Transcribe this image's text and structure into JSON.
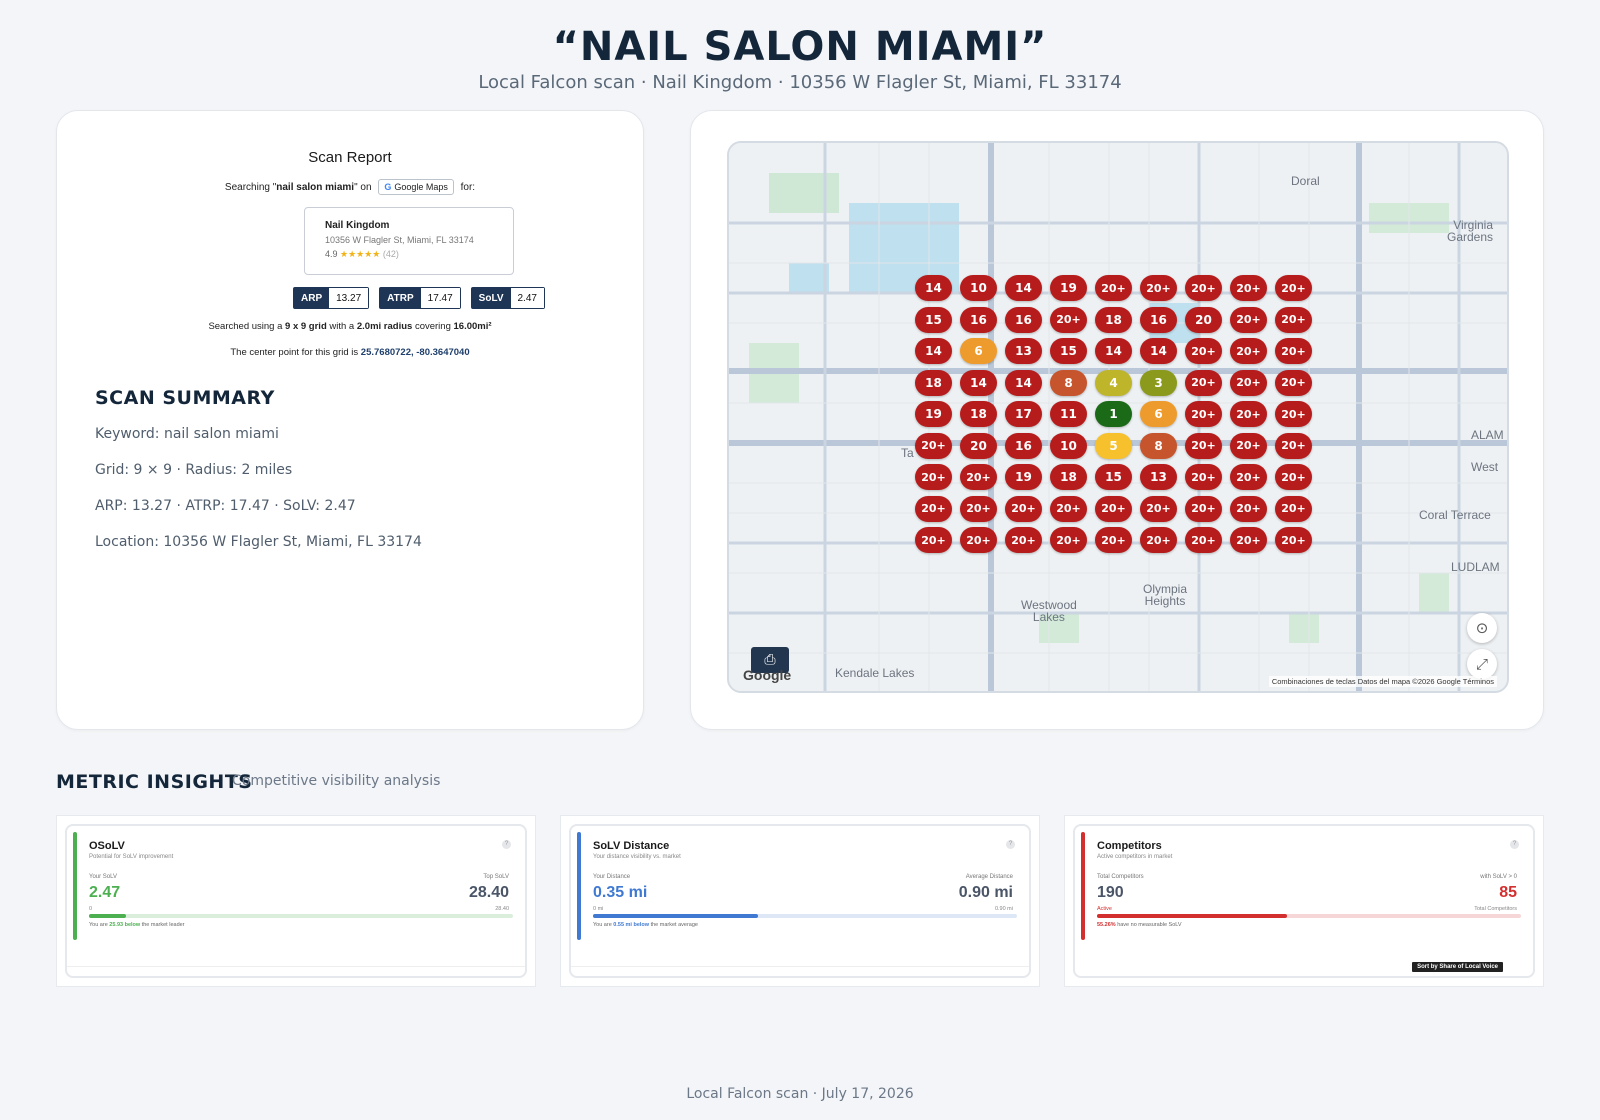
{
  "header": {
    "title": "“NAIL SALON MIAMI”",
    "subtitle": "Local Falcon scan · Nail Kingdom · 10356 W Flagler St, Miami, FL 33174"
  },
  "scan_report": {
    "title": "Scan Report",
    "search_prefix": "Searching \"",
    "keyword": "nail salon miami",
    "search_mid": "\" on",
    "platform": "Google Maps",
    "search_suffix": "for:",
    "business": {
      "name": "Nail Kingdom",
      "address": "10356 W Flagler St, Miami, FL 33174",
      "rating": "4.9",
      "stars": "★★★★★",
      "review_count": "(42)"
    },
    "metrics": [
      {
        "label": "ARP",
        "value": "13.27"
      },
      {
        "label": "ATRP",
        "value": "17.47"
      },
      {
        "label": "SoLV",
        "value": "2.47"
      }
    ],
    "grid_text_1": "Searched using a",
    "grid_size": "9 x 9 grid",
    "grid_text_2": "with a",
    "radius": "2.0mi radius",
    "grid_text_3": "covering",
    "area": "16.00mi²",
    "center_text": "The center point for this grid is",
    "center_coords": "25.7680722, -80.3647040"
  },
  "summary": {
    "heading": "SCAN SUMMARY",
    "keyword_line": "Keyword: nail salon miami",
    "grid_line": "Grid: 9 × 9 · Radius: 2 miles",
    "metrics_line": "ARP: 13.27 · ATRP: 17.47 · SoLV: 2.47",
    "location_line": "Location: 10356 W Flagler St, Miami, FL 33174"
  },
  "map": {
    "grid_ranks": [
      [
        "14",
        "10",
        "14",
        "19",
        "20+",
        "20+",
        "20+",
        "20+",
        "20+"
      ],
      [
        "15",
        "16",
        "16",
        "20+",
        "18",
        "16",
        "20",
        "20+",
        "20+"
      ],
      [
        "14",
        "6",
        "13",
        "15",
        "14",
        "14",
        "20+",
        "20+",
        "20+"
      ],
      [
        "18",
        "14",
        "14",
        "8",
        "4",
        "3",
        "20+",
        "20+",
        "20+"
      ],
      [
        "19",
        "18",
        "17",
        "11",
        "1",
        "6",
        "20+",
        "20+",
        "20+"
      ],
      [
        "20+",
        "20",
        "16",
        "10",
        "5",
        "8",
        "20+",
        "20+",
        "20+"
      ],
      [
        "20+",
        "20+",
        "19",
        "18",
        "15",
        "13",
        "20+",
        "20+",
        "20+"
      ],
      [
        "20+",
        "20+",
        "20+",
        "20+",
        "20+",
        "20+",
        "20+",
        "20+",
        "20+"
      ],
      [
        "20+",
        "20+",
        "20+",
        "20+",
        "20+",
        "20+",
        "20+",
        "20+",
        "20+"
      ]
    ],
    "labels": {
      "doral": "Doral",
      "virginia": "Virginia\nGardens",
      "coral_terrace": "Coral Terrace",
      "west": "West",
      "olympia": "Olympia\nHeights",
      "westwood": "Westwood\nLakes",
      "kendale": "Kendale Lakes",
      "alam": "ALAM",
      "ludlam": "LUDLAM",
      "ta": "Ta"
    },
    "google": "Google",
    "attribution": "Combinaciones de teclas   Datos del mapa ©2026 Google   Términos"
  },
  "insights": {
    "heading": "METRIC INSIGHTS",
    "subheading": "Competitive visibility analysis",
    "cards": [
      {
        "title": "OSoLV",
        "subtitle": "Potential for SoLV improvement",
        "left_label": "Your SoLV",
        "left_value": "2.47",
        "right_label": "Top SoLV",
        "right_value": "28.40",
        "tick_left": "0",
        "tick_right": "28.40",
        "note_pre": "You are",
        "note_value": "25.93 below",
        "note_post": "the market leader",
        "progress": 0.087,
        "accent": "#4caf50"
      },
      {
        "title": "SoLV Distance",
        "subtitle": "Your distance visibility vs. market",
        "left_label": "Your Distance",
        "left_value": "0.35 mi",
        "right_label": "Average Distance",
        "right_value": "0.90 mi",
        "tick_left": "0 mi",
        "tick_right": "0.90 mi",
        "note_pre": "You are",
        "note_value": "0.55 mi below",
        "note_post": "the market average",
        "progress": 0.39,
        "accent": "#3f79d1"
      },
      {
        "title": "Competitors",
        "subtitle": "Active competitors in market",
        "left_label": "Total Competitors",
        "left_value": "190",
        "right_label": "with SoLV > 0",
        "right_value": "85",
        "tick_left": "Active",
        "tick_right": "Total Competitors",
        "note_pre": "",
        "note_value": "55.26%",
        "note_post": "have no measurable SoLV",
        "progress": 0.447,
        "accent": "#d32f2f",
        "sort_label": "Sort by Share of Local Voice"
      }
    ]
  },
  "footer": "Local Falcon scan · July 17, 2026"
}
